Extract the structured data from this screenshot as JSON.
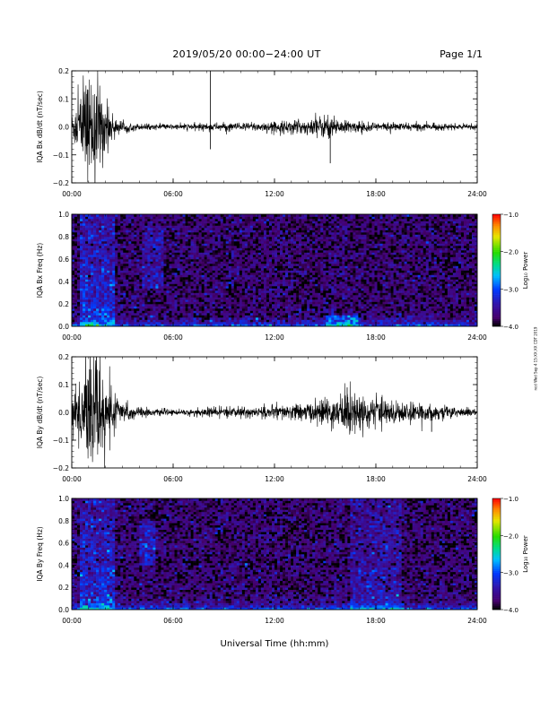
{
  "header": {
    "title": "2019/05/20  00:00−24:00 UT",
    "page": "Page 1/1"
  },
  "side_credit": "ncd Wed Sep 4 15:XX:XX CDT 2019",
  "chart_data": [
    {
      "type": "line",
      "ylabel": "IQA Bx dB/dt (nT/sec)",
      "xlim": [
        0,
        24
      ],
      "ylim": [
        -0.2,
        0.2
      ],
      "xticks": [
        "00:00",
        "06:00",
        "12:00",
        "18:00",
        "24:00"
      ],
      "yticks": [
        "−0.2",
        "−0.1",
        "0.0",
        "0.1",
        "0.2"
      ],
      "envelope": {
        "hours": [
          0,
          0.5,
          1.0,
          1.5,
          2.0,
          2.5,
          3,
          4,
          5,
          6,
          7,
          8,
          9,
          10,
          11,
          12,
          13,
          14,
          14.5,
          15,
          15.5,
          16,
          17,
          18,
          19,
          20,
          21,
          22,
          23,
          24
        ],
        "amplitude": [
          0.05,
          0.14,
          0.2,
          0.2,
          0.1,
          0.04,
          0.02,
          0.012,
          0.01,
          0.01,
          0.012,
          0.015,
          0.015,
          0.015,
          0.018,
          0.02,
          0.025,
          0.03,
          0.04,
          0.045,
          0.04,
          0.025,
          0.02,
          0.018,
          0.015,
          0.015,
          0.014,
          0.012,
          0.01,
          0.01
        ]
      },
      "spikes": [
        {
          "hour": 8.2,
          "value": 0.2
        },
        {
          "hour": 8.2,
          "value": -0.08
        },
        {
          "hour": 15.3,
          "value": -0.13
        }
      ]
    },
    {
      "type": "heatmap",
      "ylabel": "IQA Bx Freq (Hz)",
      "xlim": [
        0,
        24
      ],
      "ylim": [
        0,
        1.0
      ],
      "xticks": [
        "00:00",
        "06:00",
        "12:00",
        "18:00",
        "24:00"
      ],
      "yticks": [
        "0.0",
        "0.2",
        "0.4",
        "0.6",
        "0.8",
        "1.0"
      ],
      "colorbar": {
        "label": "Log₁₀ Power",
        "range": [
          -4.0,
          -1.0
        ],
        "ticks": [
          "−4.0",
          "−3.0",
          "−2.0",
          "−1.0"
        ]
      },
      "features": [
        {
          "hour_range": [
            0.5,
            2.5
          ],
          "freq_range": [
            0,
            1.0
          ],
          "level": -3.0
        },
        {
          "hour_range": [
            4.2,
            5.5
          ],
          "freq_range": [
            0.35,
            0.9
          ],
          "level": -3.2
        },
        {
          "hour_range": [
            15,
            17
          ],
          "freq_range": [
            0,
            0.1
          ],
          "level": -3.0
        }
      ]
    },
    {
      "type": "line",
      "ylabel": "IQA By dB/dt (nT/sec)",
      "xlim": [
        0,
        24
      ],
      "ylim": [
        -0.2,
        0.2
      ],
      "xticks": [
        "00:00",
        "06:00",
        "12:00",
        "18:00",
        "24:00"
      ],
      "yticks": [
        "−0.2",
        "−0.1",
        "0.0",
        "0.1",
        "0.2"
      ],
      "envelope": {
        "hours": [
          0,
          0.5,
          1.0,
          1.5,
          2.0,
          2.5,
          3,
          4,
          5,
          6,
          7,
          8,
          9,
          10,
          11,
          12,
          13,
          14,
          15,
          16,
          16.5,
          17,
          18,
          19,
          20,
          21,
          22,
          23,
          24
        ],
        "amplitude": [
          0.06,
          0.15,
          0.2,
          0.2,
          0.15,
          0.07,
          0.04,
          0.02,
          0.012,
          0.01,
          0.012,
          0.018,
          0.02,
          0.02,
          0.02,
          0.025,
          0.03,
          0.035,
          0.05,
          0.07,
          0.09,
          0.07,
          0.05,
          0.045,
          0.035,
          0.03,
          0.025,
          0.02,
          0.015
        ]
      },
      "spikes": [
        {
          "hour": 16.3,
          "value": 0.09
        },
        {
          "hour": 21.3,
          "value": -0.07
        }
      ]
    },
    {
      "type": "heatmap",
      "ylabel": "IQA By Freq (Hz)",
      "xlim": [
        0,
        24
      ],
      "ylim": [
        0,
        1.0
      ],
      "xticks": [
        "00:00",
        "06:00",
        "12:00",
        "18:00",
        "24:00"
      ],
      "yticks": [
        "0.0",
        "0.2",
        "0.4",
        "0.6",
        "0.8",
        "1.0"
      ],
      "colorbar": {
        "label": "Log₁₀ Power",
        "range": [
          -4.0,
          -1.0
        ],
        "ticks": [
          "−4.0",
          "−3.0",
          "−2.0",
          "−1.0"
        ]
      },
      "features": [
        {
          "hour_range": [
            0.5,
            2.5
          ],
          "freq_range": [
            0,
            1.0
          ],
          "level": -3.0
        },
        {
          "hour_range": [
            4.0,
            5.0
          ],
          "freq_range": [
            0.4,
            0.8
          ],
          "level": -3.0
        },
        {
          "hour_range": [
            16.5,
            19.5
          ],
          "freq_range": [
            0,
            1.0
          ],
          "level": -3.3
        }
      ]
    }
  ],
  "xlabel": "Universal Time (hh:mm)"
}
